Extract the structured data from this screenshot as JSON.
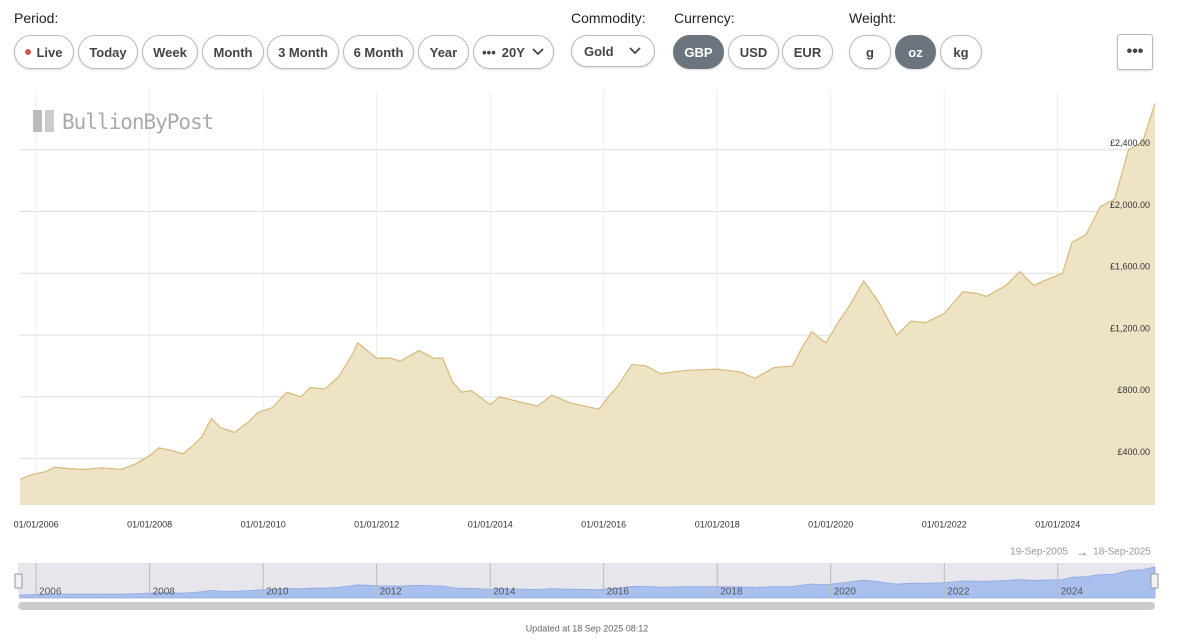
{
  "controls": {
    "period_label": "Period:",
    "period_options": [
      "Live",
      "Today",
      "Week",
      "Month",
      "3 Month",
      "6 Month",
      "Year",
      "20Y"
    ],
    "commodity_label": "Commodity:",
    "commodity": "Gold",
    "currency_label": "Currency:",
    "currency_options": [
      "GBP",
      "USD",
      "EUR"
    ],
    "weight_label": "Weight:",
    "weight_options": [
      "g",
      "oz",
      "kg"
    ]
  },
  "chart_data": {
    "type": "area",
    "watermark": "BullionByPost",
    "color": "#d9bd80",
    "fill": "#efe3c6",
    "grid": true,
    "x": [
      "19/09/2005",
      "01/12/2005",
      "01/03/2006",
      "01/05/2006",
      "01/08/2006",
      "01/11/2006",
      "01/03/2007",
      "01/07/2007",
      "01/10/2007",
      "01/01/2008",
      "01/03/2008",
      "01/06/2008",
      "01/08/2008",
      "01/10/2008",
      "01/12/2008",
      "01/02/2009",
      "01/04/2009",
      "01/07/2009",
      "01/10/2009",
      "01/12/2009",
      "01/03/2010",
      "01/06/2010",
      "01/09/2010",
      "01/11/2010",
      "01/02/2011",
      "01/05/2011",
      "01/08/2011",
      "01/09/2011",
      "01/11/2011",
      "01/01/2012",
      "01/04/2012",
      "01/06/2012",
      "01/10/2012",
      "01/01/2013",
      "01/03/2013",
      "01/05/2013",
      "01/07/2013",
      "01/09/2013",
      "01/01/2014",
      "01/03/2014",
      "01/07/2014",
      "01/11/2014",
      "01/02/2015",
      "01/06/2015",
      "01/12/2015",
      "01/02/2016",
      "01/04/2016",
      "01/07/2016",
      "01/10/2016",
      "01/01/2017",
      "01/06/2017",
      "01/01/2018",
      "01/06/2018",
      "01/09/2018",
      "01/01/2019",
      "01/05/2019",
      "01/07/2019",
      "01/09/2019",
      "01/12/2019",
      "01/03/2020",
      "01/05/2020",
      "01/08/2020",
      "01/11/2020",
      "01/03/2021",
      "01/06/2021",
      "01/09/2021",
      "01/01/2022",
      "01/05/2022",
      "01/08/2022",
      "01/10/2022",
      "01/02/2023",
      "01/05/2023",
      "01/08/2023",
      "01/10/2023",
      "01/02/2024",
      "01/04/2024",
      "01/07/2024",
      "01/10/2024",
      "01/01/2025",
      "01/04/2025",
      "01/07/2025",
      "18/09/2025"
    ],
    "values": [
      265,
      295,
      315,
      345,
      335,
      330,
      340,
      330,
      365,
      420,
      470,
      450,
      430,
      480,
      540,
      660,
      600,
      570,
      640,
      700,
      730,
      830,
      800,
      860,
      850,
      930,
      1080,
      1150,
      1100,
      1050,
      1050,
      1030,
      1100,
      1050,
      1050,
      900,
      830,
      840,
      750,
      800,
      770,
      740,
      810,
      760,
      720,
      800,
      870,
      1010,
      1000,
      950,
      970,
      980,
      960,
      920,
      990,
      1000,
      1120,
      1220,
      1150,
      1300,
      1390,
      1550,
      1420,
      1200,
      1290,
      1280,
      1340,
      1480,
      1470,
      1450,
      1520,
      1610,
      1520,
      1550,
      1600,
      1800,
      1850,
      2030,
      2080,
      2400,
      2450,
      2700
    ],
    "xlim": [
      "19/09/2005",
      "18/09/2025"
    ],
    "xticks": [
      "01/01/2006",
      "01/01/2008",
      "01/01/2010",
      "01/01/2012",
      "01/01/2014",
      "01/01/2016",
      "01/01/2018",
      "01/01/2020",
      "01/01/2022",
      "01/01/2024"
    ],
    "ylim": [
      100,
      2780
    ],
    "yticks": [
      {
        "value": 400,
        "label": "£400.00"
      },
      {
        "value": 800,
        "label": "£800.00"
      },
      {
        "value": 1200,
        "label": "£1,200.00"
      },
      {
        "value": 1600,
        "label": "£1,600.00"
      },
      {
        "value": 2000,
        "label": "£2,000.00"
      },
      {
        "value": 2400,
        "label": "£2,400.00"
      }
    ],
    "navigator": {
      "labels": [
        2006,
        2008,
        2010,
        2012,
        2014,
        2016,
        2018,
        2020,
        2022,
        2024
      ],
      "range_start": "19-Sep-2005",
      "range_end": "18-Sep-2025",
      "color": "#a9bfee"
    }
  },
  "footer": "Updated at 18 Sep 2025 08:12"
}
